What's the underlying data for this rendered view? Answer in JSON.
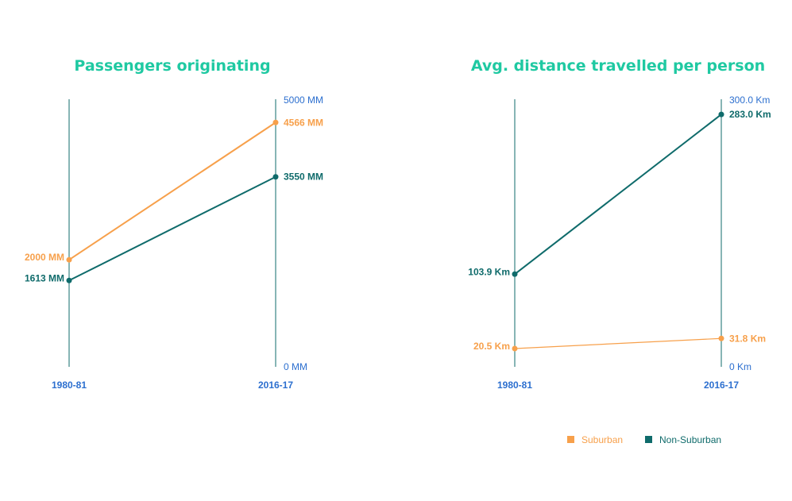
{
  "colors": {
    "suburban": "#f7a04b",
    "non_suburban": "#0f6b6b",
    "title": "#1fc9a2",
    "axis_text": "#2c6fcf",
    "axis_line": "#0f6b6b"
  },
  "legend": {
    "items": [
      {
        "label": "Suburban",
        "color": "#f7a04b"
      },
      {
        "label": "Non-Suburban",
        "color": "#0f6b6b"
      }
    ]
  },
  "chart_data": [
    {
      "type": "line",
      "title": "Passengers originating",
      "categories": [
        "1980-81",
        "2016-17"
      ],
      "ylim": [
        0,
        5000
      ],
      "axis_ticks": [
        "5000 MM",
        "0 MM"
      ],
      "series": [
        {
          "name": "Suburban",
          "values": [
            2000,
            4566
          ],
          "labels": [
            "2000 MM",
            "4566 MM"
          ]
        },
        {
          "name": "Non-Suburban",
          "values": [
            1613,
            3550
          ],
          "labels": [
            "1613 MM",
            "3550 MM"
          ]
        }
      ]
    },
    {
      "type": "line",
      "title": "Avg. distance travelled per person",
      "categories": [
        "1980-81",
        "2016-17"
      ],
      "ylim": [
        0,
        300
      ],
      "axis_ticks": [
        "300.0 Km",
        "0 Km"
      ],
      "series": [
        {
          "name": "Suburban",
          "values": [
            20.5,
            31.8
          ],
          "labels": [
            "20.5 Km",
            "31.8 Km"
          ]
        },
        {
          "name": "Non-Suburban",
          "values": [
            103.9,
            283.0
          ],
          "labels": [
            "103.9 Km",
            "283.0 Km"
          ]
        }
      ]
    }
  ]
}
